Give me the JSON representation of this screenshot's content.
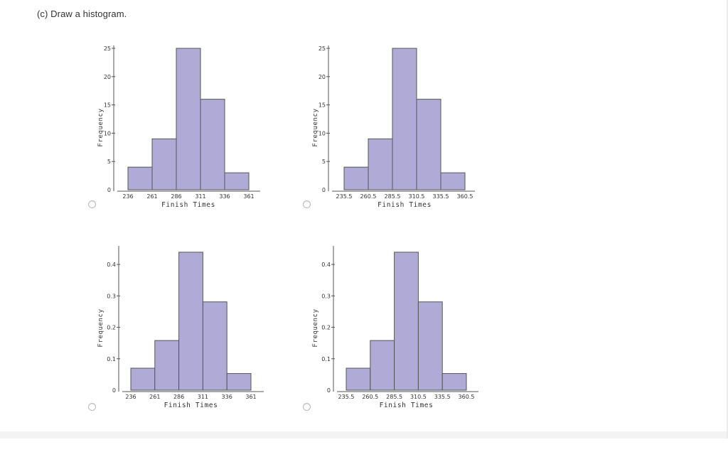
{
  "question": {
    "text": "(c) Draw a histogram."
  },
  "chart_data": [
    {
      "type": "bar",
      "option": "A",
      "bin_edges": [
        236,
        261,
        286,
        311,
        336,
        361
      ],
      "values": [
        4,
        9,
        25,
        16,
        3
      ],
      "x_tick_labels": [
        "236",
        "261",
        "286",
        "311",
        "336",
        "361"
      ],
      "xlabel": "Finish Times",
      "ylabel": "Frequency",
      "ylim": [
        0,
        25
      ],
      "y_ticks": [
        0,
        5,
        10,
        15,
        20,
        25
      ],
      "y_tick_labels": [
        "0",
        "5",
        "10",
        "15",
        "20",
        "25"
      ],
      "bar_color": "#b0aad6",
      "edge_color": "#555555"
    },
    {
      "type": "bar",
      "option": "B",
      "bin_edges": [
        235.5,
        260.5,
        285.5,
        310.5,
        335.5,
        360.5
      ],
      "values": [
        4,
        9,
        25,
        16,
        3
      ],
      "x_tick_labels": [
        "235.5",
        "260.5",
        "285.5",
        "310.5",
        "335.5",
        "360.5"
      ],
      "xlabel": "Finish Times",
      "ylabel": "Frequency",
      "ylim": [
        0,
        25
      ],
      "y_ticks": [
        0,
        5,
        10,
        15,
        20,
        25
      ],
      "y_tick_labels": [
        "0",
        "5",
        "10",
        "15",
        "20",
        "25"
      ],
      "bar_color": "#b0aad6",
      "edge_color": "#555555"
    },
    {
      "type": "bar",
      "option": "C",
      "bin_edges": [
        236,
        261,
        286,
        311,
        336,
        361
      ],
      "values": [
        0.07,
        0.158,
        0.439,
        0.281,
        0.053
      ],
      "x_tick_labels": [
        "236",
        "261",
        "286",
        "311",
        "336",
        "361"
      ],
      "xlabel": "Finish Times",
      "ylabel": "Frequency",
      "ylim": [
        0,
        0.45
      ],
      "y_ticks": [
        0,
        0.1,
        0.2,
        0.3,
        0.4
      ],
      "y_tick_labels": [
        "0",
        "0.1",
        "0.2",
        "0.3",
        "0.4"
      ],
      "bar_color": "#b0aad6",
      "edge_color": "#555555"
    },
    {
      "type": "bar",
      "option": "D",
      "bin_edges": [
        235.5,
        260.5,
        285.5,
        310.5,
        335.5,
        360.5
      ],
      "values": [
        0.07,
        0.158,
        0.439,
        0.281,
        0.053
      ],
      "x_tick_labels": [
        "235.5",
        "260.5",
        "285.5",
        "310.5",
        "335.5",
        "360.5"
      ],
      "xlabel": "Finish Times",
      "ylabel": "Frequency",
      "ylim": [
        0,
        0.45
      ],
      "y_ticks": [
        0,
        0.1,
        0.2,
        0.3,
        0.4
      ],
      "y_tick_labels": [
        "0",
        "0.1",
        "0.2",
        "0.3",
        "0.4"
      ],
      "bar_color": "#b0aad6",
      "edge_color": "#555555"
    }
  ]
}
